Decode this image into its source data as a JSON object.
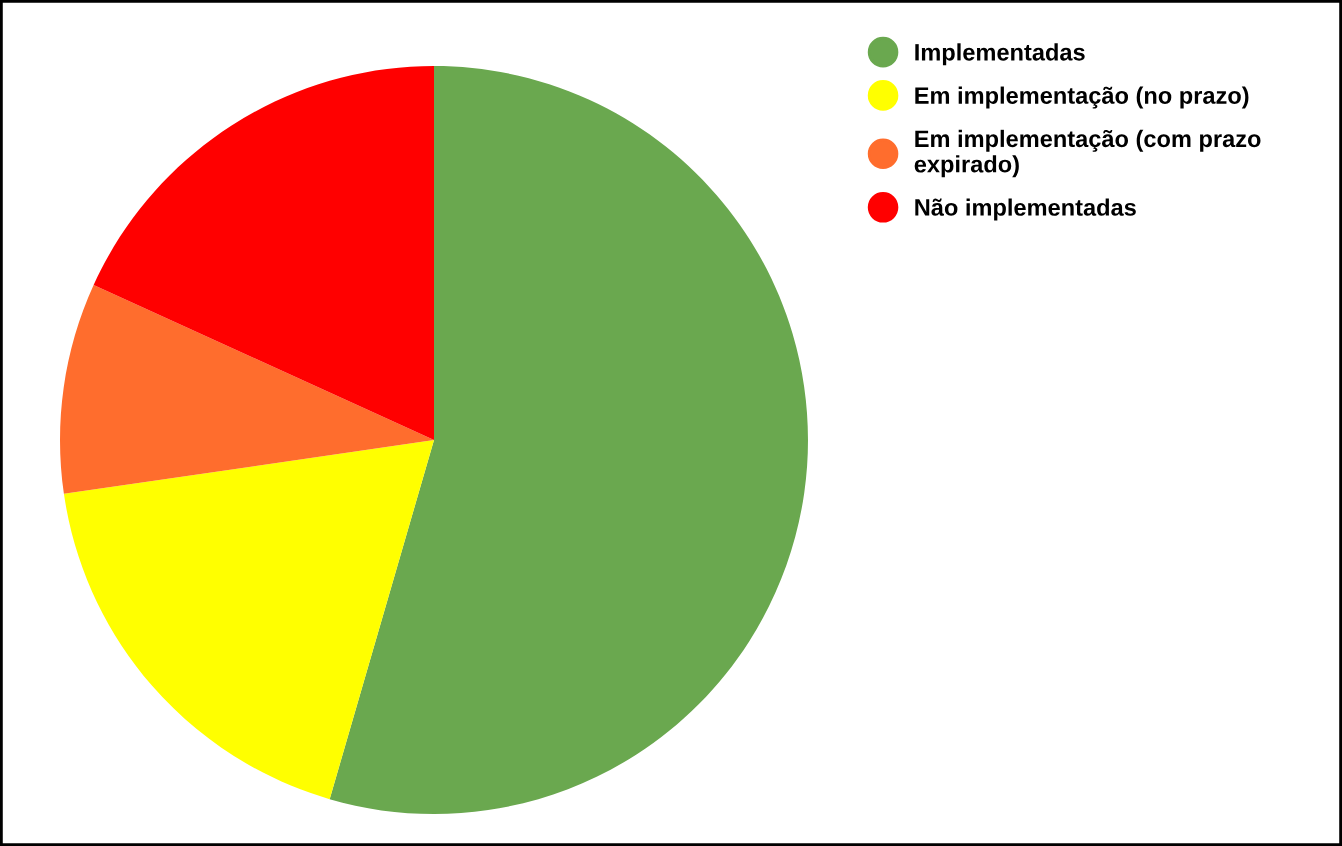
{
  "chart_data": {
    "type": "pie",
    "categories": [
      "Implementadas",
      "Em implementação (no prazo)",
      "Em implementação (com prazo expirado)",
      "Não implementadas"
    ],
    "values": [
      54.5,
      18.2,
      9.1,
      18.2
    ],
    "colors": [
      "#6aa84f",
      "#ffff00",
      "#ff6d2d",
      "#ff0000"
    ],
    "legend": "top right"
  }
}
